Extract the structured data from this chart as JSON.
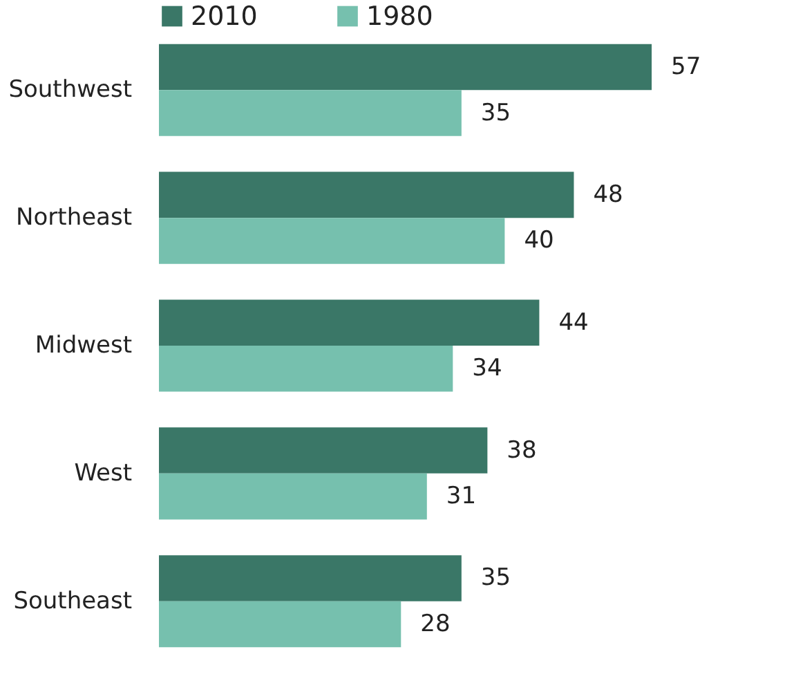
{
  "chart_data": {
    "type": "bar",
    "orientation": "horizontal",
    "categories": [
      "Southwest",
      "Northeast",
      "Midwest",
      "West",
      "Southeast"
    ],
    "series": [
      {
        "name": "2010",
        "color": "#3a7767",
        "values": [
          57,
          48,
          44,
          38,
          35
        ]
      },
      {
        "name": "1980",
        "color": "#76c0ae",
        "values": [
          35,
          40,
          34,
          31,
          28
        ]
      }
    ],
    "data_labels": true,
    "legend": "top left"
  }
}
